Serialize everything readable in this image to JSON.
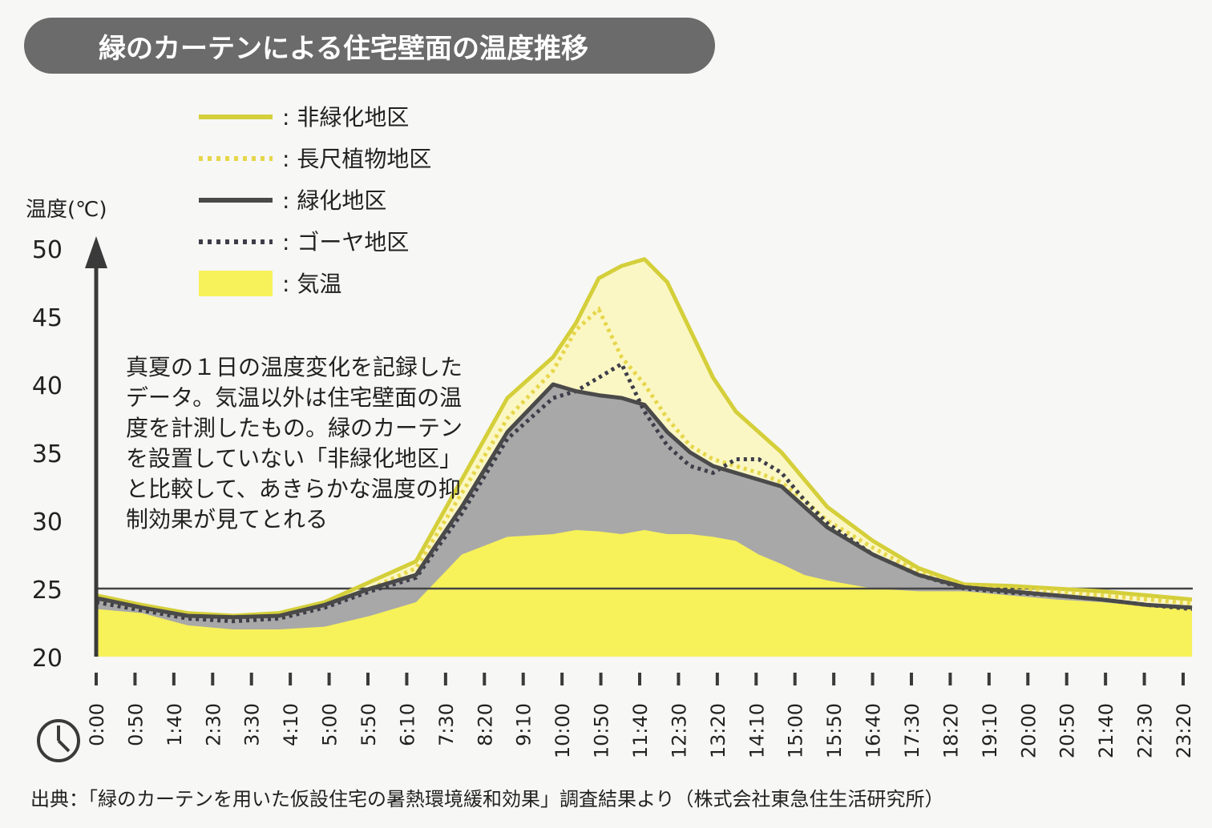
{
  "chart_data": {
    "type": "area",
    "title": "緑のカーテンによる住宅壁面の温度推移",
    "ylabel": "温度(℃)",
    "xlabel": "",
    "ylim": [
      20,
      50
    ],
    "yticks": [
      20,
      25,
      30,
      35,
      40,
      45,
      50
    ],
    "x_tick_labels": [
      "0:00",
      "0:50",
      "1:40",
      "2:30",
      "3:30",
      "4:10",
      "5:00",
      "5:50",
      "6:10",
      "7:30",
      "8:20",
      "9:10",
      "10:00",
      "10:50",
      "11:40",
      "12:30",
      "13:20",
      "14:10",
      "15:00",
      "15:50",
      "16:40",
      "17:30",
      "18:20",
      "19:10",
      "20:00",
      "20:50",
      "21:40",
      "22:30",
      "23:20"
    ],
    "x_minutes": [
      0,
      60,
      120,
      180,
      240,
      300,
      360,
      420,
      480,
      540,
      600,
      630,
      660,
      690,
      720,
      750,
      780,
      810,
      840,
      870,
      900,
      930,
      960,
      1020,
      1080,
      1140,
      1200,
      1260,
      1320,
      1380,
      1439
    ],
    "reference_line": 25,
    "legend": [
      {
        "label": ": 非緑化地区",
        "style": "solid",
        "color": "#d4cf3a"
      },
      {
        "label": ": 長尺植物地区",
        "style": "dotted",
        "color": "#e6d64a"
      },
      {
        "label": ": 緑化地区",
        "style": "solid",
        "color": "#4a4a4a"
      },
      {
        "label": ": ゴーヤ地区",
        "style": "dotted",
        "color": "#3e3e4a"
      },
      {
        "label": ": 気温",
        "style": "area",
        "color": "#f7f15a"
      }
    ],
    "series": [
      {
        "name": "非緑化地区",
        "values": [
          24.5,
          23.8,
          23.2,
          23.0,
          23.2,
          24.0,
          25.5,
          27.0,
          33.0,
          39.0,
          42.0,
          44.5,
          47.8,
          48.7,
          49.2,
          47.5,
          44.0,
          40.5,
          38.0,
          36.5,
          35.0,
          33.0,
          31.0,
          28.5,
          26.5,
          25.3,
          25.2,
          25.0,
          24.8,
          24.5,
          24.2
        ]
      },
      {
        "name": "長尺植物地区",
        "values": [
          24.2,
          23.5,
          23.0,
          22.8,
          22.9,
          23.8,
          25.0,
          26.5,
          32.0,
          37.5,
          41.0,
          44.0,
          45.5,
          42.0,
          40.0,
          37.5,
          35.5,
          34.5,
          34.0,
          33.5,
          32.8,
          31.5,
          30.0,
          28.0,
          26.2,
          25.2,
          25.0,
          24.8,
          24.5,
          24.2,
          23.9
        ]
      },
      {
        "name": "緑化地区",
        "values": [
          24.3,
          23.6,
          23.0,
          22.9,
          23.0,
          23.8,
          25.0,
          26.0,
          31.0,
          36.5,
          40.0,
          39.5,
          39.2,
          39.0,
          38.5,
          36.5,
          35.0,
          34.0,
          33.5,
          33.0,
          32.5,
          31.0,
          29.5,
          27.5,
          26.0,
          25.1,
          24.8,
          24.5,
          24.2,
          23.8,
          23.6
        ]
      },
      {
        "name": "ゴーヤ地区",
        "values": [
          24.0,
          23.4,
          22.8,
          22.6,
          22.8,
          23.6,
          24.8,
          25.8,
          30.5,
          36.0,
          39.0,
          39.5,
          40.5,
          41.5,
          38.0,
          35.5,
          34.0,
          33.5,
          34.5,
          34.5,
          33.5,
          31.5,
          29.8,
          27.5,
          26.0,
          25.0,
          24.7,
          24.5,
          24.2,
          23.8,
          23.5
        ]
      },
      {
        "name": "気温",
        "values": [
          23.5,
          23.2,
          22.3,
          22.0,
          22.0,
          22.2,
          23.0,
          24.0,
          27.5,
          28.8,
          29.0,
          29.3,
          29.2,
          29.0,
          29.3,
          29.0,
          29.0,
          28.8,
          28.5,
          27.5,
          26.8,
          26.0,
          25.6,
          25.0,
          24.8,
          24.8,
          24.5,
          24.2,
          24.0,
          23.7,
          23.5
        ]
      }
    ]
  },
  "annotation": {
    "lines": [
      "真夏の１日の温度変化を記録した",
      "データ。気温以外は住宅壁面の温",
      "度を計測したもの。緑のカーテン",
      "を設置していない「非緑化地区」",
      "と比較して、あきらかな温度の抑",
      "制効果が見てとれる"
    ]
  },
  "source_text": "出典：「緑のカーテンを用いた仮設住宅の暑熱環境緩和効果」調査結果より（株式会社東急住生活研究所）",
  "clock_icon": "clock-icon",
  "colors": {
    "title_bg": "#6b6b6b",
    "title_text": "#ffffff",
    "non_green_line": "#d4cf3a",
    "non_green_fill": "#fbf7c4",
    "green_fill": "#a8a8a8",
    "air_fill": "#f7f15a",
    "axis": "#3a3a3a"
  }
}
